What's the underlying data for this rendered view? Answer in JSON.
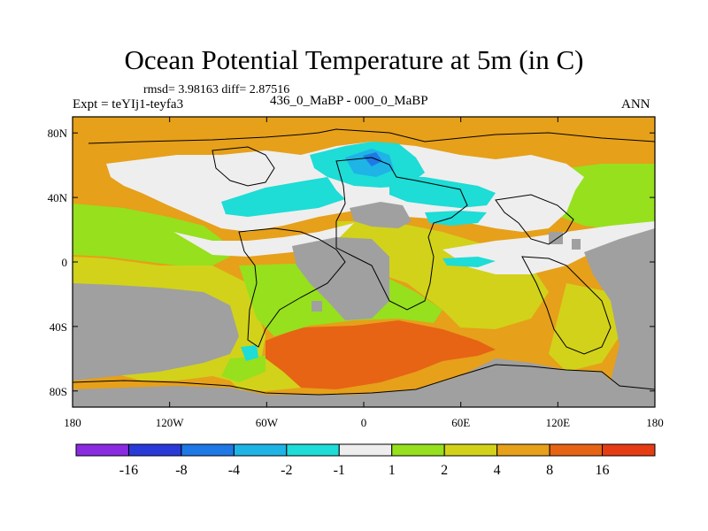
{
  "title": "Ocean Potential Temperature at 5m (in C)",
  "stats": "rmsd= 3.98163 diff= 2.87516",
  "experiment": "Expt = teYIj1-teyfa3",
  "subtitle": "436_0_MaBP - 000_0_MaBP",
  "season": "ANN",
  "axes": {
    "x_ticks": [
      "180",
      "120W",
      "60W",
      "0",
      "60E",
      "120E",
      "180"
    ],
    "y_ticks": [
      "80N",
      "40N",
      "0",
      "40S",
      "80S"
    ]
  },
  "colorbar": {
    "colors": [
      "#8a2be2",
      "#2a3ad8",
      "#1e78e6",
      "#1eb4e6",
      "#1edcd6",
      "#eeeeee",
      "#96e01e",
      "#d2d21a",
      "#e6a01a",
      "#e66414",
      "#e63c14"
    ],
    "labels": [
      "-16",
      "-8",
      "-4",
      "-2",
      "-1",
      "1",
      "2",
      "4",
      "8",
      "16"
    ]
  },
  "colors": {
    "land": "#a0a0a0",
    "orange": "#e6a01a",
    "dark_orange": "#e66414",
    "yellow": "#d2d21a",
    "green": "#96e01e",
    "white": "#eeeeee",
    "cyan": "#1edcd6",
    "light_blue": "#1eb4e6",
    "mid_blue": "#1e78e6"
  }
}
